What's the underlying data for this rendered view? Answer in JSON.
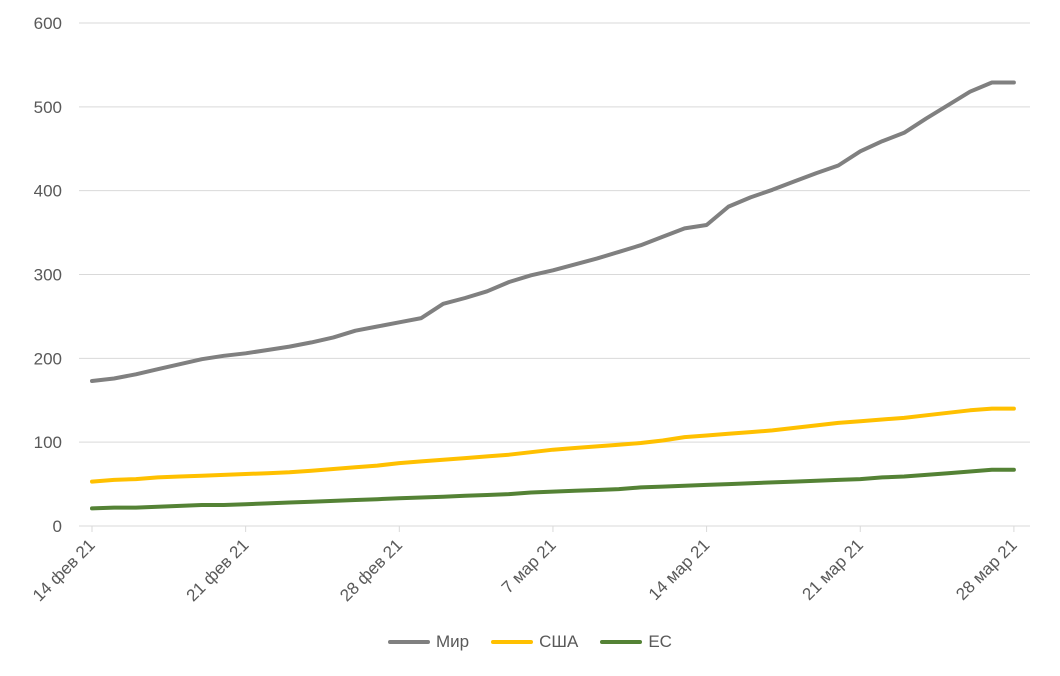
{
  "chart_data": {
    "type": "line",
    "title": "",
    "xlabel": "",
    "ylabel": "",
    "ylim": [
      0,
      600
    ],
    "yticks": [
      "0",
      "100",
      "200",
      "300",
      "400",
      "500",
      "600"
    ],
    "grid": true,
    "legend_position": "bottom",
    "xtick_labels": [
      "14 фев 21",
      "21 фев 21",
      "28 фев 21",
      "7 мар 21",
      "14 мар 21",
      "21 мар 21",
      "28 мар 21"
    ],
    "x_start_label": "14 фев 21",
    "days": 43,
    "series": [
      {
        "name": "Мир",
        "color": "#808080",
        "values": [
          173,
          176,
          181,
          187,
          193,
          199,
          203,
          206,
          210,
          214,
          219,
          225,
          233,
          238,
          243,
          248,
          265,
          272,
          280,
          291,
          299,
          305,
          312,
          319,
          327,
          335,
          345,
          355,
          359,
          381,
          392,
          401,
          411,
          421,
          430,
          447,
          459,
          469,
          486,
          502,
          518,
          529,
          529
        ]
      },
      {
        "name": "США",
        "color": "#ffc000",
        "values": [
          53,
          55,
          56,
          58,
          59,
          60,
          61,
          62,
          63,
          64,
          66,
          68,
          70,
          72,
          75,
          77,
          79,
          81,
          83,
          85,
          88,
          91,
          93,
          95,
          97,
          99,
          102,
          106,
          108,
          110,
          112,
          114,
          117,
          120,
          123,
          125,
          127,
          129,
          132,
          135,
          138,
          140,
          140
        ]
      },
      {
        "name": "ЕС",
        "color": "#548235",
        "values": [
          21,
          22,
          22,
          23,
          24,
          25,
          25,
          26,
          27,
          28,
          29,
          30,
          31,
          32,
          33,
          34,
          35,
          36,
          37,
          38,
          40,
          41,
          42,
          43,
          44,
          46,
          47,
          48,
          49,
          50,
          51,
          52,
          53,
          54,
          55,
          56,
          58,
          59,
          61,
          63,
          65,
          67,
          67
        ]
      }
    ]
  }
}
